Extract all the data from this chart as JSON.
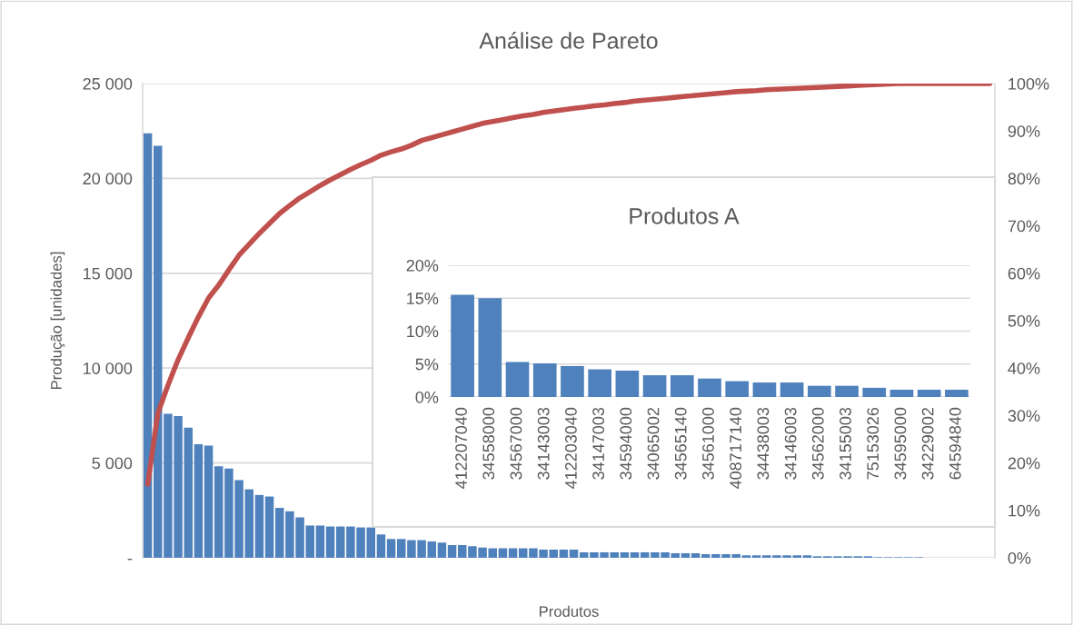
{
  "chart_data": [
    {
      "type": "bar",
      "title": "Análise de Pareto",
      "xlabel": "Produtos",
      "ylabel": "Produção [unidades]",
      "categories": [
        null,
        null,
        null,
        null,
        null,
        null,
        null,
        null,
        null,
        null,
        null,
        null,
        null,
        null,
        null,
        null,
        null,
        null,
        null,
        null,
        null,
        null,
        null,
        null,
        null,
        null,
        null,
        null,
        null,
        null,
        null,
        null,
        null,
        null,
        null,
        null,
        null,
        null,
        null,
        null,
        null,
        null,
        null,
        null,
        null,
        null,
        null,
        null,
        null,
        null,
        null,
        null,
        null,
        null,
        null,
        null,
        null,
        null,
        null,
        null,
        null,
        null,
        null,
        null,
        null,
        null,
        null,
        null,
        null,
        null,
        null,
        null,
        null,
        null,
        null,
        null,
        null,
        null,
        null,
        null,
        null,
        null,
        null,
        null
      ],
      "series": [
        {
          "type": "bar",
          "color": "#4f81bd",
          "values": [
            22380,
            21720,
            7590,
            7470,
            6860,
            5990,
            5920,
            4830,
            4710,
            4090,
            3610,
            3310,
            3230,
            2630,
            2450,
            2130,
            1700,
            1700,
            1650,
            1650,
            1650,
            1600,
            1600,
            1230,
            990,
            990,
            930,
            930,
            860,
            800,
            670,
            670,
            610,
            540,
            500,
            500,
            500,
            500,
            500,
            430,
            430,
            430,
            430,
            290,
            290,
            290,
            290,
            290,
            290,
            290,
            290,
            290,
            240,
            240,
            240,
            190,
            190,
            190,
            190,
            130,
            130,
            130,
            130,
            130,
            130,
            130,
            80,
            80,
            80,
            80,
            80,
            80,
            30,
            30,
            30,
            30,
            30,
            0,
            0,
            0,
            0,
            0,
            0,
            0
          ]
        },
        {
          "type": "line",
          "axis": "y2",
          "color": "#c0504d",
          "values": [
            15.5,
            30.5,
            36.4,
            41.8,
            46.4,
            50.8,
            54.8,
            57.5,
            60.7,
            63.8,
            66.1,
            68.4,
            70.5,
            72.6,
            74.3,
            75.9,
            77.2,
            78.5,
            79.7,
            80.8,
            81.9,
            82.9,
            83.8,
            84.9,
            85.6,
            86.2,
            87.0,
            88.0,
            88.6,
            89.2,
            89.8,
            90.4,
            91.0,
            91.6,
            92.0,
            92.4,
            92.8,
            93.2,
            93.5,
            93.9,
            94.2,
            94.5,
            94.8,
            95.0,
            95.3,
            95.5,
            95.8,
            96.0,
            96.3,
            96.5,
            96.7,
            96.9,
            97.1,
            97.3,
            97.5,
            97.7,
            97.9,
            98.1,
            98.3,
            98.4,
            98.5,
            98.7,
            98.8,
            98.9,
            99.0,
            99.1,
            99.2,
            99.3,
            99.4,
            99.5,
            99.6,
            99.7,
            99.8,
            99.9,
            100,
            100,
            100,
            100,
            100,
            100,
            100,
            100,
            100,
            100
          ]
        }
      ],
      "ylim": [
        0,
        25000
      ],
      "yticks": [
        {
          "value": 0,
          "label": "-"
        },
        {
          "value": 5000,
          "label": "5 000"
        },
        {
          "value": 10000,
          "label": "10 000"
        },
        {
          "value": 15000,
          "label": "15 000"
        },
        {
          "value": 20000,
          "label": "20 000"
        },
        {
          "value": 25000,
          "label": "25 000"
        }
      ],
      "y2lim": [
        0,
        100
      ],
      "y2ticks": [
        {
          "value": 0,
          "label": "0%"
        },
        {
          "value": 10,
          "label": "10%"
        },
        {
          "value": 20,
          "label": "20%"
        },
        {
          "value": 30,
          "label": "30%"
        },
        {
          "value": 40,
          "label": "40%"
        },
        {
          "value": 50,
          "label": "50%"
        },
        {
          "value": 60,
          "label": "60%"
        },
        {
          "value": 70,
          "label": "70%"
        },
        {
          "value": 80,
          "label": "80%"
        },
        {
          "value": 90,
          "label": "90%"
        },
        {
          "value": 100,
          "label": "100%"
        }
      ],
      "grid": "y"
    },
    {
      "type": "bar",
      "title": "Produtos A",
      "categories": [
        "412207040",
        "34558000",
        "34567000",
        "34143003",
        "412203040",
        "34147003",
        "34594000",
        "34065002",
        "34565140",
        "34561000",
        "408717140",
        "34438003",
        "34146003",
        "34562000",
        "34155003",
        "75153026",
        "34595000",
        "34229002",
        "64594840"
      ],
      "values": [
        15.5,
        15.0,
        5.3,
        5.1,
        4.7,
        4.2,
        4.0,
        3.3,
        3.3,
        2.8,
        2.4,
        2.2,
        2.2,
        1.7,
        1.7,
        1.4,
        1.1,
        1.1,
        1.1
      ],
      "color": "#4f81bd",
      "ylim": [
        0,
        20
      ],
      "yticks": [
        {
          "value": 0,
          "label": "0%"
        },
        {
          "value": 5,
          "label": "5%"
        },
        {
          "value": 10,
          "label": "10%"
        },
        {
          "value": 15,
          "label": "15%"
        },
        {
          "value": 20,
          "label": "20%"
        }
      ],
      "grid": "y"
    }
  ]
}
